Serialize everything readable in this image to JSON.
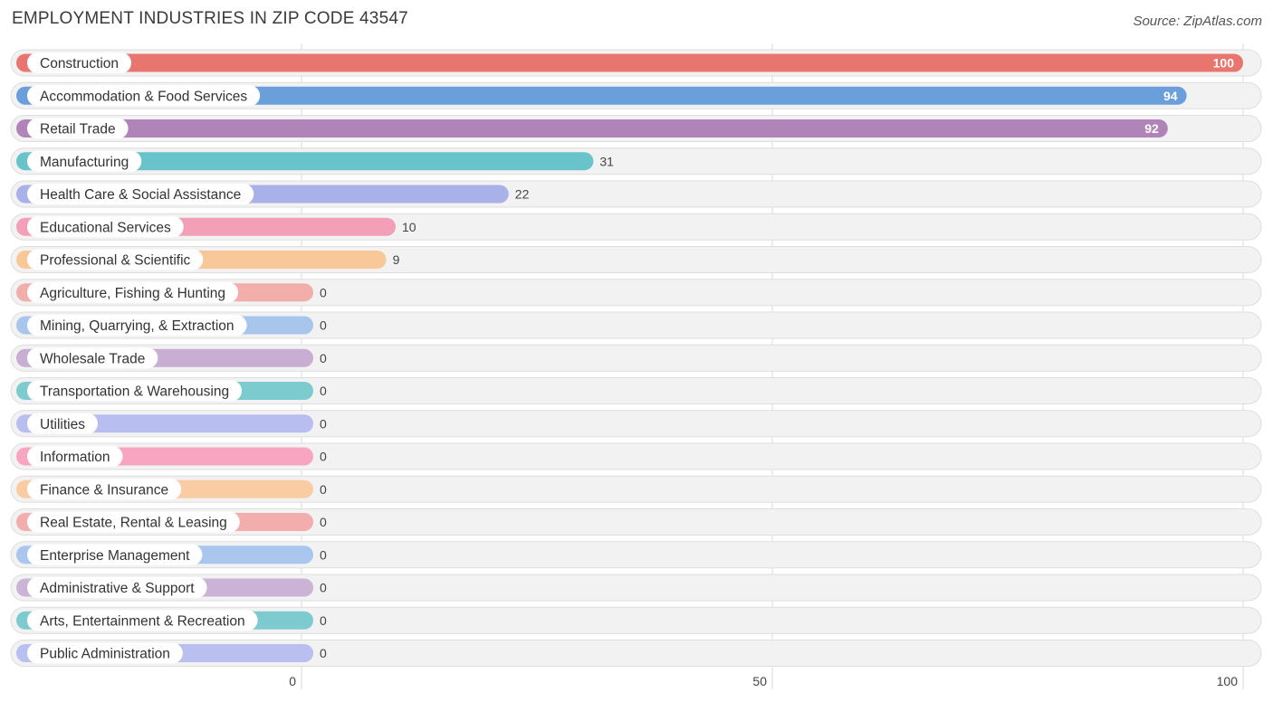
{
  "header": {
    "title": "EMPLOYMENT INDUSTRIES IN ZIP CODE 43547",
    "source": "Source: ZipAtlas.com"
  },
  "chart_data": {
    "type": "bar",
    "orientation": "horizontal",
    "title": "EMPLOYMENT INDUSTRIES IN ZIP CODE 43547",
    "xlim": [
      0,
      100
    ],
    "xticks": [
      0,
      50,
      100
    ],
    "grid": true,
    "categories": [
      "Construction",
      "Accommodation & Food Services",
      "Retail Trade",
      "Manufacturing",
      "Health Care & Social Assistance",
      "Educational Services",
      "Professional & Scientific",
      "Agriculture, Fishing & Hunting",
      "Mining, Quarrying, & Extraction",
      "Wholesale Trade",
      "Transportation & Warehousing",
      "Utilities",
      "Information",
      "Finance & Insurance",
      "Real Estate, Rental & Leasing",
      "Enterprise Management",
      "Administrative & Support",
      "Arts, Entertainment & Recreation",
      "Public Administration"
    ],
    "values": [
      100,
      94,
      92,
      31,
      22,
      10,
      9,
      0,
      0,
      0,
      0,
      0,
      0,
      0,
      0,
      0,
      0,
      0,
      0
    ],
    "colors": [
      "#e8766f",
      "#6a9fdc",
      "#b083b9",
      "#68c3ca",
      "#a9b2e8",
      "#f49fb8",
      "#f8c898",
      "#f2aeab",
      "#a8c5ec",
      "#c8aed2",
      "#7ccbcf",
      "#b8bff0",
      "#f8a5c2",
      "#f9cca4",
      "#f2aeac",
      "#a8c6ee",
      "#cbb3d6",
      "#7ecbcf",
      "#b9c0f0"
    ]
  }
}
